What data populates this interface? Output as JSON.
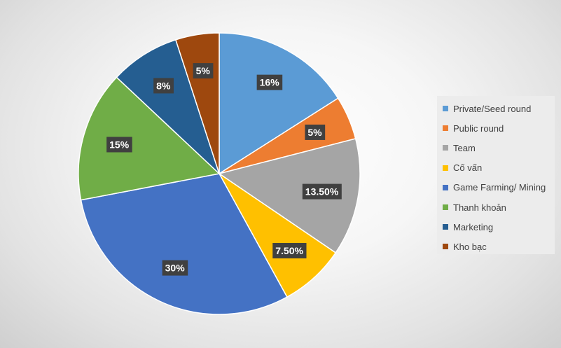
{
  "chart_data": {
    "type": "pie",
    "title": "",
    "legend_position": "right",
    "slices": [
      {
        "label": "Private/Seed round",
        "value": 16,
        "display": "16%",
        "color": "#5b9bd5"
      },
      {
        "label": "Public round",
        "value": 5,
        "display": "5%",
        "color": "#ed7d31"
      },
      {
        "label": "Team",
        "value": 13.5,
        "display": "13.50%",
        "color": "#a5a5a5"
      },
      {
        "label": "Cố vấn",
        "value": 7.5,
        "display": "7.50%",
        "color": "#ffc000"
      },
      {
        "label": "Game Farming/ Mining",
        "value": 30,
        "display": "30%",
        "color": "#4472c4"
      },
      {
        "label": "Thanh khoản",
        "value": 15,
        "display": "15%",
        "color": "#70ad47"
      },
      {
        "label": "Marketing",
        "value": 8,
        "display": "8%",
        "color": "#255e91"
      },
      {
        "label": "Kho bạc",
        "value": 5,
        "display": "5%",
        "color": "#9e480e"
      }
    ]
  }
}
